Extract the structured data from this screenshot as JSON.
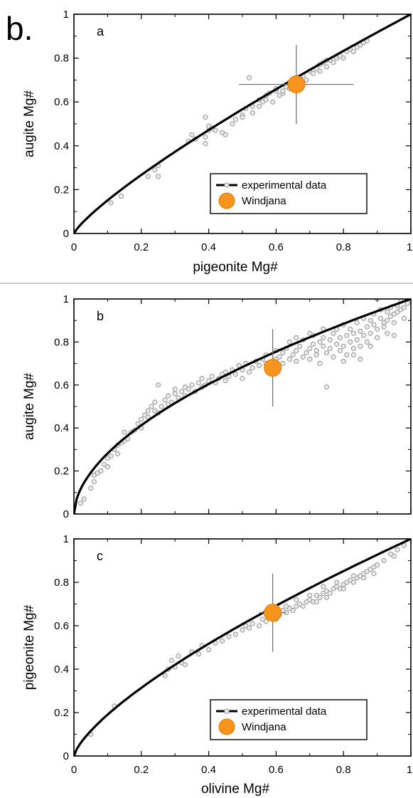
{
  "figure_label": "b.",
  "colors": {
    "curve": "#000000",
    "point_fill": "#e9e9e9",
    "point_stroke": "#8e8e8e",
    "windjana_fill": "#f7941d",
    "windjana_stroke": "#e07a00",
    "error_bar": "#6b6b6b"
  },
  "chart_data": [
    {
      "type": "scatter",
      "panel_label": "a",
      "xlabel": "pigeonite Mg#",
      "ylabel": "augite Mg#",
      "xlim": [
        0,
        1
      ],
      "ylim": [
        0,
        1
      ],
      "xticks": [
        "0",
        "0.2",
        "0.4",
        "0.6",
        "0.8",
        "1"
      ],
      "yticks": [
        "0",
        "0.2",
        "0.4",
        "0.6",
        "0.8",
        "1"
      ],
      "grid": false,
      "legend": {
        "placement": "lower-right",
        "entries": [
          {
            "label": "experimental data",
            "marker": "line-with-point"
          },
          {
            "label": "Windjana",
            "marker": "orange-circle"
          }
        ]
      },
      "curve_exponent": 0.82,
      "windjana": {
        "x": 0.66,
        "y": 0.68,
        "x_err": 0.17,
        "y_err": 0.18
      },
      "experimental_data": [
        [
          0.11,
          0.14
        ],
        [
          0.14,
          0.17
        ],
        [
          0.22,
          0.26
        ],
        [
          0.24,
          0.29
        ],
        [
          0.25,
          0.31
        ],
        [
          0.25,
          0.26
        ],
        [
          0.34,
          0.42
        ],
        [
          0.35,
          0.45
        ],
        [
          0.36,
          0.43
        ],
        [
          0.39,
          0.41
        ],
        [
          0.39,
          0.44
        ],
        [
          0.4,
          0.47
        ],
        [
          0.4,
          0.49
        ],
        [
          0.39,
          0.53
        ],
        [
          0.41,
          0.48
        ],
        [
          0.42,
          0.47
        ],
        [
          0.44,
          0.46
        ],
        [
          0.45,
          0.45
        ],
        [
          0.47,
          0.5
        ],
        [
          0.48,
          0.52
        ],
        [
          0.5,
          0.54
        ],
        [
          0.5,
          0.53
        ],
        [
          0.51,
          0.57
        ],
        [
          0.53,
          0.55
        ],
        [
          0.53,
          0.58
        ],
        [
          0.55,
          0.58
        ],
        [
          0.55,
          0.61
        ],
        [
          0.56,
          0.6
        ],
        [
          0.57,
          0.61
        ],
        [
          0.57,
          0.63
        ],
        [
          0.58,
          0.64
        ],
        [
          0.59,
          0.6
        ],
        [
          0.6,
          0.65
        ],
        [
          0.6,
          0.66
        ],
        [
          0.61,
          0.63
        ],
        [
          0.62,
          0.64
        ],
        [
          0.52,
          0.71
        ],
        [
          0.62,
          0.65
        ],
        [
          0.63,
          0.67
        ],
        [
          0.64,
          0.66
        ],
        [
          0.64,
          0.69
        ],
        [
          0.65,
          0.7
        ],
        [
          0.66,
          0.71
        ],
        [
          0.67,
          0.68
        ],
        [
          0.68,
          0.72
        ],
        [
          0.69,
          0.7
        ],
        [
          0.7,
          0.74
        ],
        [
          0.71,
          0.73
        ],
        [
          0.72,
          0.75
        ],
        [
          0.73,
          0.74
        ],
        [
          0.73,
          0.77
        ],
        [
          0.74,
          0.78
        ],
        [
          0.75,
          0.76
        ],
        [
          0.76,
          0.79
        ],
        [
          0.77,
          0.78
        ],
        [
          0.78,
          0.8
        ],
        [
          0.79,
          0.81
        ],
        [
          0.8,
          0.8
        ],
        [
          0.81,
          0.83
        ],
        [
          0.82,
          0.84
        ],
        [
          0.83,
          0.83
        ],
        [
          0.84,
          0.85
        ],
        [
          0.85,
          0.86
        ],
        [
          0.86,
          0.87
        ],
        [
          0.87,
          0.88
        ],
        [
          0.75,
          0.79
        ]
      ]
    },
    {
      "type": "scatter",
      "panel_label": "b",
      "xlabel": "",
      "ylabel": "augite Mg#",
      "xlim": [
        0,
        1
      ],
      "ylim": [
        0,
        1
      ],
      "xticks": [],
      "yticks": [
        "0",
        "0.2",
        "0.4",
        "0.6",
        "0.8",
        "1"
      ],
      "grid": false,
      "curve_exponent": 0.55,
      "windjana": {
        "x": 0.59,
        "y": 0.68,
        "x_err": 0.0,
        "y_err": 0.18
      },
      "experimental_data": [
        [
          0.02,
          0.05
        ],
        [
          0.03,
          0.07
        ],
        [
          0.05,
          0.12
        ],
        [
          0.06,
          0.15
        ],
        [
          0.06,
          0.18
        ],
        [
          0.07,
          0.19
        ],
        [
          0.08,
          0.2
        ],
        [
          0.09,
          0.23
        ],
        [
          0.1,
          0.22
        ],
        [
          0.1,
          0.26
        ],
        [
          0.11,
          0.27
        ],
        [
          0.12,
          0.3
        ],
        [
          0.13,
          0.28
        ],
        [
          0.13,
          0.32
        ],
        [
          0.14,
          0.33
        ],
        [
          0.15,
          0.34
        ],
        [
          0.15,
          0.38
        ],
        [
          0.16,
          0.35
        ],
        [
          0.17,
          0.38
        ],
        [
          0.18,
          0.39
        ],
        [
          0.19,
          0.42
        ],
        [
          0.2,
          0.4
        ],
        [
          0.2,
          0.44
        ],
        [
          0.21,
          0.46
        ],
        [
          0.22,
          0.45
        ],
        [
          0.22,
          0.48
        ],
        [
          0.23,
          0.5
        ],
        [
          0.24,
          0.48
        ],
        [
          0.24,
          0.52
        ],
        [
          0.25,
          0.47
        ],
        [
          0.25,
          0.6
        ],
        [
          0.26,
          0.5
        ],
        [
          0.27,
          0.53
        ],
        [
          0.28,
          0.51
        ],
        [
          0.28,
          0.55
        ],
        [
          0.29,
          0.52
        ],
        [
          0.3,
          0.56
        ],
        [
          0.3,
          0.58
        ],
        [
          0.31,
          0.54
        ],
        [
          0.32,
          0.57
        ],
        [
          0.33,
          0.55
        ],
        [
          0.33,
          0.59
        ],
        [
          0.34,
          0.58
        ],
        [
          0.35,
          0.6
        ],
        [
          0.36,
          0.57
        ],
        [
          0.37,
          0.61
        ],
        [
          0.38,
          0.59
        ],
        [
          0.38,
          0.63
        ],
        [
          0.39,
          0.6
        ],
        [
          0.4,
          0.62
        ],
        [
          0.41,
          0.64
        ],
        [
          0.42,
          0.61
        ],
        [
          0.43,
          0.63
        ],
        [
          0.44,
          0.65
        ],
        [
          0.45,
          0.62
        ],
        [
          0.45,
          0.66
        ],
        [
          0.46,
          0.64
        ],
        [
          0.47,
          0.67
        ],
        [
          0.48,
          0.65
        ],
        [
          0.49,
          0.69
        ],
        [
          0.5,
          0.63
        ],
        [
          0.5,
          0.67
        ],
        [
          0.51,
          0.7
        ],
        [
          0.52,
          0.66
        ],
        [
          0.53,
          0.68
        ],
        [
          0.54,
          0.71
        ],
        [
          0.55,
          0.69
        ],
        [
          0.56,
          0.72
        ],
        [
          0.57,
          0.7
        ],
        [
          0.57,
          0.74
        ],
        [
          0.58,
          0.67
        ],
        [
          0.6,
          0.72
        ],
        [
          0.6,
          0.76
        ],
        [
          0.61,
          0.73
        ],
        [
          0.62,
          0.7
        ],
        [
          0.62,
          0.75
        ],
        [
          0.63,
          0.77
        ],
        [
          0.64,
          0.72
        ],
        [
          0.64,
          0.8
        ],
        [
          0.65,
          0.74
        ],
        [
          0.66,
          0.76
        ],
        [
          0.66,
          0.71
        ],
        [
          0.67,
          0.78
        ],
        [
          0.68,
          0.73
        ],
        [
          0.68,
          0.81
        ],
        [
          0.69,
          0.75
        ],
        [
          0.7,
          0.77
        ],
        [
          0.7,
          0.72
        ],
        [
          0.71,
          0.79
        ],
        [
          0.71,
          0.83
        ],
        [
          0.72,
          0.74
        ],
        [
          0.72,
          0.76
        ],
        [
          0.73,
          0.8
        ],
        [
          0.73,
          0.7
        ],
        [
          0.74,
          0.78
        ],
        [
          0.74,
          0.82
        ],
        [
          0.75,
          0.75
        ],
        [
          0.75,
          0.59
        ],
        [
          0.76,
          0.81
        ],
        [
          0.76,
          0.77
        ],
        [
          0.77,
          0.84
        ],
        [
          0.77,
          0.73
        ],
        [
          0.78,
          0.79
        ],
        [
          0.78,
          0.86
        ],
        [
          0.79,
          0.76
        ],
        [
          0.79,
          0.82
        ],
        [
          0.8,
          0.78
        ],
        [
          0.8,
          0.88
        ],
        [
          0.81,
          0.83
        ],
        [
          0.81,
          0.74
        ],
        [
          0.82,
          0.8
        ],
        [
          0.82,
          0.86
        ],
        [
          0.83,
          0.77
        ],
        [
          0.83,
          0.84
        ],
        [
          0.84,
          0.89
        ],
        [
          0.84,
          0.81
        ],
        [
          0.85,
          0.85
        ],
        [
          0.85,
          0.78
        ],
        [
          0.86,
          0.91
        ],
        [
          0.86,
          0.83
        ],
        [
          0.87,
          0.87
        ],
        [
          0.87,
          0.8
        ],
        [
          0.88,
          0.9
        ],
        [
          0.88,
          0.84
        ],
        [
          0.89,
          0.88
        ],
        [
          0.89,
          0.93
        ],
        [
          0.9,
          0.82
        ],
        [
          0.9,
          0.86
        ],
        [
          0.91,
          0.91
        ],
        [
          0.91,
          0.95
        ],
        [
          0.92,
          0.87
        ],
        [
          0.92,
          0.89
        ],
        [
          0.93,
          0.94
        ],
        [
          0.93,
          0.9
        ],
        [
          0.94,
          0.92
        ],
        [
          0.94,
          0.96
        ],
        [
          0.95,
          0.93
        ],
        [
          0.95,
          0.89
        ],
        [
          0.96,
          0.97
        ],
        [
          0.96,
          0.94
        ],
        [
          0.97,
          0.95
        ],
        [
          0.97,
          0.99
        ],
        [
          0.98,
          0.96
        ],
        [
          0.99,
          0.98
        ],
        [
          0.9,
          1.0
        ],
        [
          0.99,
          1.0
        ],
        [
          0.88,
          0.78
        ],
        [
          0.85,
          0.72
        ],
        [
          0.8,
          0.71
        ],
        [
          0.83,
          0.74
        ],
        [
          0.93,
          0.84
        ],
        [
          0.95,
          0.83
        ],
        [
          0.98,
          0.91
        ],
        [
          0.7,
          0.84
        ],
        [
          0.74,
          0.86
        ],
        [
          0.66,
          0.82
        ]
      ]
    },
    {
      "type": "scatter",
      "panel_label": "c",
      "xlabel": "olivine Mg#",
      "ylabel": "pigeonite Mg#",
      "xlim": [
        0,
        1
      ],
      "ylim": [
        0,
        1
      ],
      "xticks": [
        "0",
        "0.2",
        "0.4",
        "0.6",
        "0.8",
        "1"
      ],
      "yticks": [
        "0",
        "0.2",
        "0.4",
        "0.6",
        "0.8",
        "1"
      ],
      "grid": false,
      "legend": {
        "placement": "lower-right",
        "entries": [
          {
            "label": "experimental data",
            "marker": "line-with-point"
          },
          {
            "label": "Windjana",
            "marker": "orange-circle"
          }
        ]
      },
      "curve_exponent": 0.72,
      "windjana": {
        "x": 0.59,
        "y": 0.66,
        "x_err": 0.04,
        "y_err": 0.18
      },
      "experimental_data": [
        [
          0.05,
          0.1
        ],
        [
          0.12,
          0.23
        ],
        [
          0.27,
          0.37
        ],
        [
          0.28,
          0.4
        ],
        [
          0.29,
          0.44
        ],
        [
          0.3,
          0.41
        ],
        [
          0.31,
          0.46
        ],
        [
          0.32,
          0.43
        ],
        [
          0.33,
          0.42
        ],
        [
          0.35,
          0.48
        ],
        [
          0.37,
          0.47
        ],
        [
          0.38,
          0.51
        ],
        [
          0.4,
          0.49
        ],
        [
          0.42,
          0.52
        ],
        [
          0.44,
          0.53
        ],
        [
          0.46,
          0.55
        ],
        [
          0.48,
          0.56
        ],
        [
          0.5,
          0.58
        ],
        [
          0.51,
          0.6
        ],
        [
          0.52,
          0.59
        ],
        [
          0.53,
          0.61
        ],
        [
          0.55,
          0.6
        ],
        [
          0.56,
          0.63
        ],
        [
          0.57,
          0.62
        ],
        [
          0.58,
          0.64
        ],
        [
          0.6,
          0.63
        ],
        [
          0.61,
          0.65
        ],
        [
          0.62,
          0.67
        ],
        [
          0.63,
          0.66
        ],
        [
          0.64,
          0.68
        ],
        [
          0.65,
          0.67
        ],
        [
          0.66,
          0.69
        ],
        [
          0.67,
          0.7
        ],
        [
          0.68,
          0.69
        ],
        [
          0.69,
          0.71
        ],
        [
          0.7,
          0.72
        ],
        [
          0.71,
          0.71
        ],
        [
          0.72,
          0.74
        ],
        [
          0.73,
          0.73
        ],
        [
          0.74,
          0.75
        ],
        [
          0.75,
          0.76
        ],
        [
          0.76,
          0.75
        ],
        [
          0.77,
          0.77
        ],
        [
          0.78,
          0.78
        ],
        [
          0.79,
          0.77
        ],
        [
          0.8,
          0.79
        ],
        [
          0.81,
          0.8
        ],
        [
          0.82,
          0.81
        ],
        [
          0.83,
          0.8
        ],
        [
          0.84,
          0.82
        ],
        [
          0.85,
          0.83
        ],
        [
          0.86,
          0.84
        ],
        [
          0.87,
          0.85
        ],
        [
          0.88,
          0.86
        ],
        [
          0.89,
          0.87
        ],
        [
          0.9,
          0.88
        ],
        [
          0.92,
          0.9
        ],
        [
          0.94,
          0.93
        ],
        [
          0.96,
          0.95
        ],
        [
          0.98,
          0.97
        ],
        [
          0.63,
          0.69
        ],
        [
          0.66,
          0.72
        ],
        [
          0.7,
          0.74
        ],
        [
          0.72,
          0.71
        ],
        [
          0.75,
          0.73
        ],
        [
          0.78,
          0.8
        ],
        [
          0.8,
          0.77
        ],
        [
          0.83,
          0.83
        ],
        [
          0.86,
          0.82
        ],
        [
          0.89,
          0.84
        ],
        [
          0.95,
          0.92
        ],
        [
          0.74,
          0.78
        ]
      ]
    }
  ]
}
